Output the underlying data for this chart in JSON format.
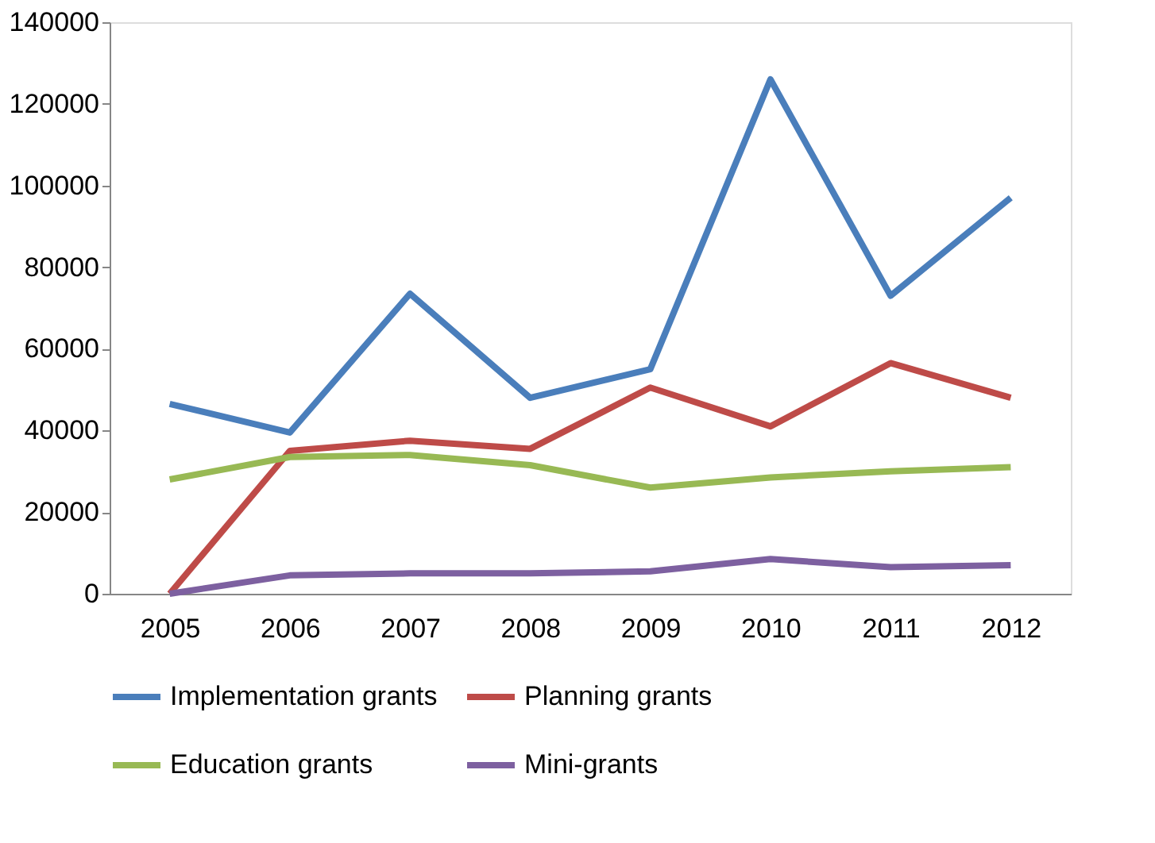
{
  "chart_data": {
    "type": "line",
    "categories": [
      "2005",
      "2006",
      "2007",
      "2008",
      "2009",
      "2010",
      "2011",
      "2012"
    ],
    "series": [
      {
        "name": "Implementation grants",
        "color": "#4a7ebb",
        "values": [
          46500,
          39500,
          73500,
          48000,
          55000,
          126000,
          73000,
          97000
        ]
      },
      {
        "name": "Planning  grants",
        "color": "#be4b48",
        "values": [
          0,
          35000,
          37500,
          35500,
          50500,
          41000,
          56500,
          48000
        ]
      },
      {
        "name": "Education  grants",
        "color": "#98b954",
        "values": [
          28000,
          33500,
          34000,
          31500,
          26000,
          28500,
          30000,
          31000
        ]
      },
      {
        "name": "Mini-grants",
        "color": "#7d60a0",
        "values": [
          0,
          4500,
          5000,
          5000,
          5500,
          8500,
          6500,
          7000
        ]
      }
    ],
    "ylim": [
      0,
      140000
    ],
    "yticks": [
      0,
      20000,
      40000,
      60000,
      80000,
      100000,
      120000,
      140000
    ],
    "grid": false,
    "legend": "bottom",
    "marker": "none",
    "line_style": "solid"
  }
}
